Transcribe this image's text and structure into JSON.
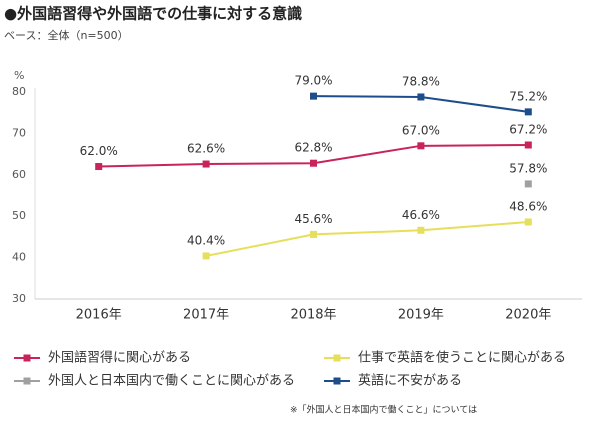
{
  "chart_data": {
    "type": "line",
    "title": "●外国語習得や外国語での仕事に対する意識",
    "subtitle": "ベース：全体（n=500）",
    "y_unit": "%",
    "note": "※「外国人と日本国内で働くこと」については",
    "categories": [
      "2016年",
      "2017年",
      "2018年",
      "2019年",
      "2020年"
    ],
    "series": [
      {
        "name": "外国語習得に関心がある",
        "color": "#c8235b",
        "values": [
          62.0,
          62.6,
          62.8,
          67.0,
          67.2
        ],
        "value_labels": [
          "62.0%",
          "62.6%",
          "62.8%",
          "67.0%",
          "67.2%"
        ]
      },
      {
        "name": "仕事で英語を使うことに関心がある",
        "color": "#e6df5c",
        "values": [
          null,
          40.4,
          45.6,
          46.6,
          48.6
        ],
        "value_labels": [
          null,
          "40.4%",
          "45.6%",
          "46.6%",
          "48.6%"
        ]
      },
      {
        "name": "外国人と日本国内で働くことに関心がある",
        "color": "#a0a0a0",
        "values": [
          null,
          null,
          null,
          null,
          57.8
        ],
        "value_labels": [
          null,
          null,
          null,
          null,
          "57.8%"
        ]
      },
      {
        "name": "英語に不安がある",
        "color": "#1e4d8b",
        "values": [
          null,
          null,
          79.0,
          78.8,
          75.2
        ],
        "value_labels": [
          null,
          null,
          "79.0%",
          "78.8%",
          "75.2%"
        ]
      }
    ],
    "ylim": [
      30,
      80
    ],
    "yticks": [
      30,
      40,
      50,
      60,
      70,
      80
    ],
    "grid": false
  }
}
